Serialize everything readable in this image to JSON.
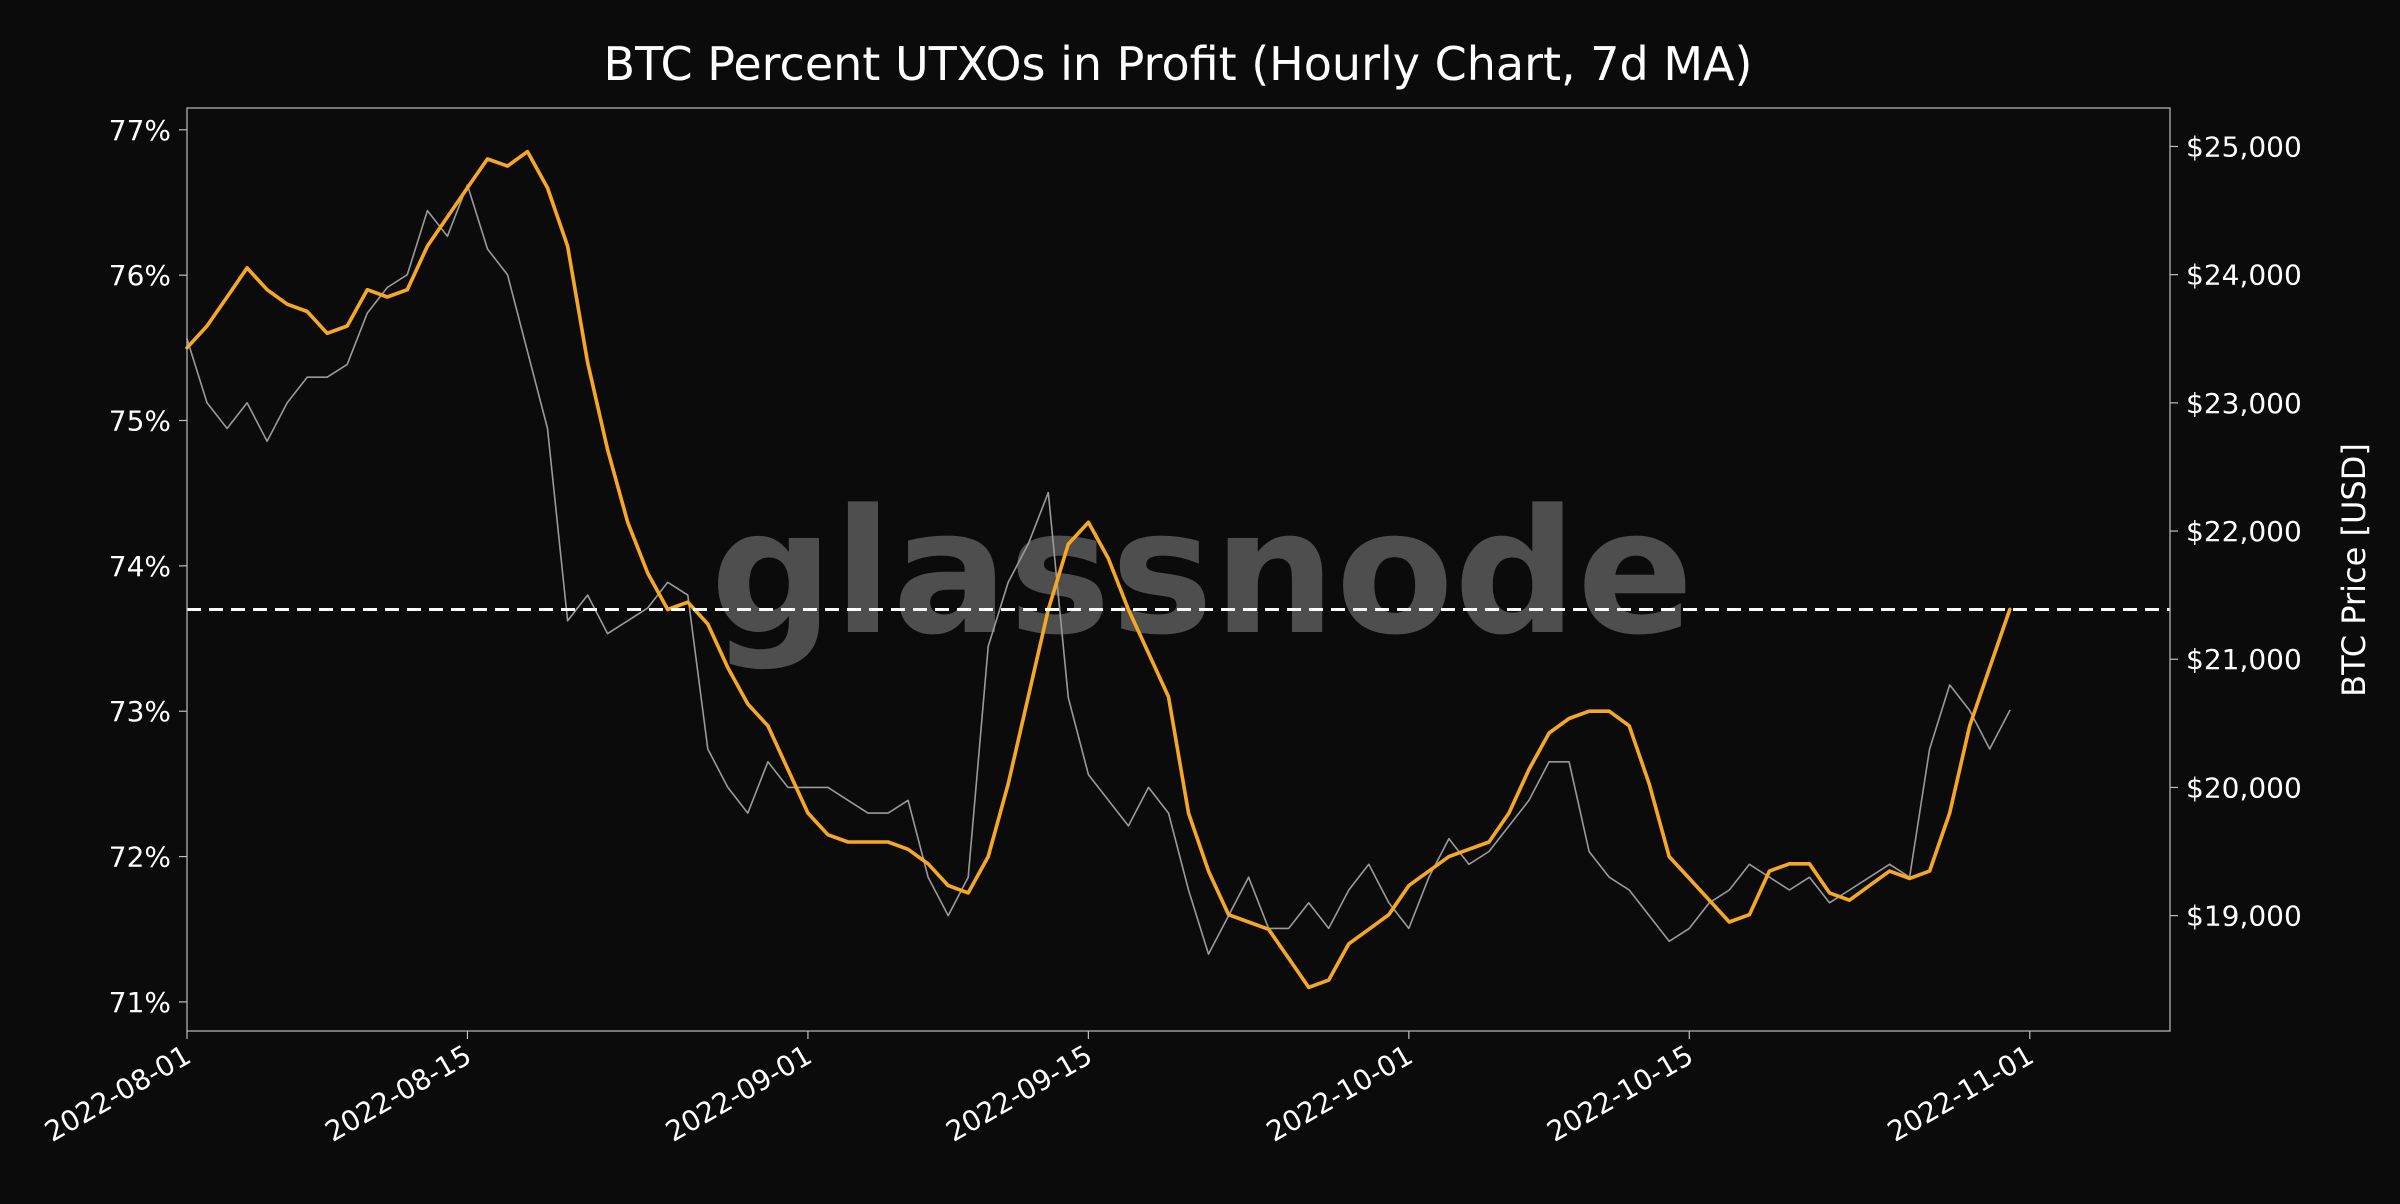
{
  "chart_data": {
    "type": "line",
    "title": "BTC Percent UTXOs in Profit (Hourly Chart, 7d MA)",
    "watermark": "glassnode",
    "xlabel": "",
    "ylabel_left": "",
    "ylabel_right": "BTC Price [USD]",
    "x_ticks": [
      "2022-08-01",
      "2022-08-15",
      "2022-09-01",
      "2022-09-15",
      "2022-10-01",
      "2022-10-15",
      "2022-11-01"
    ],
    "x_range": [
      "2022-08-01",
      "2022-11-08"
    ],
    "y_left": {
      "range": [
        70.8,
        77.15
      ],
      "ticks": [
        71,
        72,
        73,
        74,
        75,
        76,
        77
      ],
      "tick_labels": [
        "71%",
        "72%",
        "73%",
        "74%",
        "75%",
        "76%",
        "77%"
      ]
    },
    "y_right": {
      "range": [
        18100,
        25300
      ],
      "ticks": [
        19000,
        20000,
        21000,
        22000,
        23000,
        24000,
        25000
      ],
      "tick_labels": [
        "$19,000",
        "$20,000",
        "$21,000",
        "$22,000",
        "$23,000",
        "$24,000",
        "$25,000"
      ]
    },
    "grid": false,
    "reference_line": {
      "axis": "left",
      "value": 73.7,
      "style": "dashed",
      "color": "#ffffff"
    },
    "series": [
      {
        "axis": "right",
        "color": "#9a9a9a",
        "points": [
          [
            "2022-08-01",
            23500
          ],
          [
            "2022-08-02",
            23000
          ],
          [
            "2022-08-03",
            22800
          ],
          [
            "2022-08-04",
            23000
          ],
          [
            "2022-08-05",
            22700
          ],
          [
            "2022-08-06",
            23000
          ],
          [
            "2022-08-07",
            23200
          ],
          [
            "2022-08-08",
            23200
          ],
          [
            "2022-08-09",
            23300
          ],
          [
            "2022-08-10",
            23700
          ],
          [
            "2022-08-11",
            23900
          ],
          [
            "2022-08-12",
            24000
          ],
          [
            "2022-08-13",
            24500
          ],
          [
            "2022-08-14",
            24300
          ],
          [
            "2022-08-15",
            24700
          ],
          [
            "2022-08-16",
            24200
          ],
          [
            "2022-08-17",
            24000
          ],
          [
            "2022-08-18",
            23400
          ],
          [
            "2022-08-19",
            22800
          ],
          [
            "2022-08-20",
            21300
          ],
          [
            "2022-08-21",
            21500
          ],
          [
            "2022-08-22",
            21200
          ],
          [
            "2022-08-23",
            21300
          ],
          [
            "2022-08-24",
            21400
          ],
          [
            "2022-08-25",
            21600
          ],
          [
            "2022-08-26",
            21500
          ],
          [
            "2022-08-27",
            20300
          ],
          [
            "2022-08-28",
            20000
          ],
          [
            "2022-08-29",
            19800
          ],
          [
            "2022-08-30",
            20200
          ],
          [
            "2022-08-31",
            20000
          ],
          [
            "2022-09-01",
            20000
          ],
          [
            "2022-09-02",
            20000
          ],
          [
            "2022-09-03",
            19900
          ],
          [
            "2022-09-04",
            19800
          ],
          [
            "2022-09-05",
            19800
          ],
          [
            "2022-09-06",
            19900
          ],
          [
            "2022-09-07",
            19300
          ],
          [
            "2022-09-08",
            19000
          ],
          [
            "2022-09-09",
            19300
          ],
          [
            "2022-09-10",
            21100
          ],
          [
            "2022-09-11",
            21600
          ],
          [
            "2022-09-12",
            21900
          ],
          [
            "2022-09-13",
            22300
          ],
          [
            "2022-09-14",
            20700
          ],
          [
            "2022-09-15",
            20100
          ],
          [
            "2022-09-16",
            19900
          ],
          [
            "2022-09-17",
            19700
          ],
          [
            "2022-09-18",
            20000
          ],
          [
            "2022-09-19",
            19800
          ],
          [
            "2022-09-20",
            19200
          ],
          [
            "2022-09-21",
            18700
          ],
          [
            "2022-09-22",
            19000
          ],
          [
            "2022-09-23",
            19300
          ],
          [
            "2022-09-24",
            18900
          ],
          [
            "2022-09-25",
            18900
          ],
          [
            "2022-09-26",
            19100
          ],
          [
            "2022-09-27",
            18900
          ],
          [
            "2022-09-28",
            19200
          ],
          [
            "2022-09-29",
            19400
          ],
          [
            "2022-09-30",
            19100
          ],
          [
            "2022-10-01",
            18900
          ],
          [
            "2022-10-02",
            19300
          ],
          [
            "2022-10-03",
            19600
          ],
          [
            "2022-10-04",
            19400
          ],
          [
            "2022-10-05",
            19500
          ],
          [
            "2022-10-06",
            19700
          ],
          [
            "2022-10-07",
            19900
          ],
          [
            "2022-10-08",
            20200
          ],
          [
            "2022-10-09",
            20200
          ],
          [
            "2022-10-10",
            19500
          ],
          [
            "2022-10-11",
            19300
          ],
          [
            "2022-10-12",
            19200
          ],
          [
            "2022-10-13",
            19000
          ],
          [
            "2022-10-14",
            18800
          ],
          [
            "2022-10-15",
            18900
          ],
          [
            "2022-10-16",
            19100
          ],
          [
            "2022-10-17",
            19200
          ],
          [
            "2022-10-18",
            19400
          ],
          [
            "2022-10-19",
            19300
          ],
          [
            "2022-10-20",
            19200
          ],
          [
            "2022-10-21",
            19300
          ],
          [
            "2022-10-22",
            19100
          ],
          [
            "2022-10-23",
            19200
          ],
          [
            "2022-10-24",
            19300
          ],
          [
            "2022-10-25",
            19400
          ],
          [
            "2022-10-26",
            19300
          ],
          [
            "2022-10-27",
            20300
          ],
          [
            "2022-10-28",
            20800
          ],
          [
            "2022-10-29",
            20600
          ],
          [
            "2022-10-30",
            20300
          ],
          [
            "2022-10-31",
            20600
          ]
        ]
      },
      {
        "axis": "left",
        "color": "#f7a823",
        "points": [
          [
            "2022-08-01",
            75.5
          ],
          [
            "2022-08-02",
            75.65
          ],
          [
            "2022-08-03",
            75.85
          ],
          [
            "2022-08-04",
            76.05
          ],
          [
            "2022-08-05",
            75.9
          ],
          [
            "2022-08-06",
            75.8
          ],
          [
            "2022-08-07",
            75.75
          ],
          [
            "2022-08-08",
            75.6
          ],
          [
            "2022-08-09",
            75.65
          ],
          [
            "2022-08-10",
            75.9
          ],
          [
            "2022-08-11",
            75.85
          ],
          [
            "2022-08-12",
            75.9
          ],
          [
            "2022-08-13",
            76.2
          ],
          [
            "2022-08-14",
            76.4
          ],
          [
            "2022-08-15",
            76.6
          ],
          [
            "2022-08-16",
            76.8
          ],
          [
            "2022-08-17",
            76.75
          ],
          [
            "2022-08-18",
            76.85
          ],
          [
            "2022-08-19",
            76.6
          ],
          [
            "2022-08-20",
            76.2
          ],
          [
            "2022-08-21",
            75.4
          ],
          [
            "2022-08-22",
            74.8
          ],
          [
            "2022-08-23",
            74.3
          ],
          [
            "2022-08-24",
            73.95
          ],
          [
            "2022-08-25",
            73.7
          ],
          [
            "2022-08-26",
            73.75
          ],
          [
            "2022-08-27",
            73.6
          ],
          [
            "2022-08-28",
            73.3
          ],
          [
            "2022-08-29",
            73.05
          ],
          [
            "2022-08-30",
            72.9
          ],
          [
            "2022-08-31",
            72.6
          ],
          [
            "2022-09-01",
            72.3
          ],
          [
            "2022-09-02",
            72.15
          ],
          [
            "2022-09-03",
            72.1
          ],
          [
            "2022-09-04",
            72.1
          ],
          [
            "2022-09-05",
            72.1
          ],
          [
            "2022-09-06",
            72.05
          ],
          [
            "2022-09-07",
            71.95
          ],
          [
            "2022-09-08",
            71.8
          ],
          [
            "2022-09-09",
            71.75
          ],
          [
            "2022-09-10",
            72.0
          ],
          [
            "2022-09-11",
            72.5
          ],
          [
            "2022-09-12",
            73.1
          ],
          [
            "2022-09-13",
            73.7
          ],
          [
            "2022-09-14",
            74.15
          ],
          [
            "2022-09-15",
            74.3
          ],
          [
            "2022-09-16",
            74.05
          ],
          [
            "2022-09-17",
            73.7
          ],
          [
            "2022-09-18",
            73.4
          ],
          [
            "2022-09-19",
            73.1
          ],
          [
            "2022-09-20",
            72.3
          ],
          [
            "2022-09-21",
            71.9
          ],
          [
            "2022-09-22",
            71.6
          ],
          [
            "2022-09-23",
            71.55
          ],
          [
            "2022-09-24",
            71.5
          ],
          [
            "2022-09-25",
            71.3
          ],
          [
            "2022-09-26",
            71.1
          ],
          [
            "2022-09-27",
            71.15
          ],
          [
            "2022-09-28",
            71.4
          ],
          [
            "2022-09-29",
            71.5
          ],
          [
            "2022-09-30",
            71.6
          ],
          [
            "2022-10-01",
            71.8
          ],
          [
            "2022-10-02",
            71.9
          ],
          [
            "2022-10-03",
            72.0
          ],
          [
            "2022-10-04",
            72.05
          ],
          [
            "2022-10-05",
            72.1
          ],
          [
            "2022-10-06",
            72.3
          ],
          [
            "2022-10-07",
            72.6
          ],
          [
            "2022-10-08",
            72.85
          ],
          [
            "2022-10-09",
            72.95
          ],
          [
            "2022-10-10",
            73.0
          ],
          [
            "2022-10-11",
            73.0
          ],
          [
            "2022-10-12",
            72.9
          ],
          [
            "2022-10-13",
            72.5
          ],
          [
            "2022-10-14",
            72.0
          ],
          [
            "2022-10-15",
            71.85
          ],
          [
            "2022-10-16",
            71.7
          ],
          [
            "2022-10-17",
            71.55
          ],
          [
            "2022-10-18",
            71.6
          ],
          [
            "2022-10-19",
            71.9
          ],
          [
            "2022-10-20",
            71.95
          ],
          [
            "2022-10-21",
            71.95
          ],
          [
            "2022-10-22",
            71.75
          ],
          [
            "2022-10-23",
            71.7
          ],
          [
            "2022-10-24",
            71.8
          ],
          [
            "2022-10-25",
            71.9
          ],
          [
            "2022-10-26",
            71.85
          ],
          [
            "2022-10-27",
            71.9
          ],
          [
            "2022-10-28",
            72.3
          ],
          [
            "2022-10-29",
            72.9
          ],
          [
            "2022-10-30",
            73.3
          ],
          [
            "2022-10-31",
            73.7
          ]
        ]
      }
    ]
  }
}
